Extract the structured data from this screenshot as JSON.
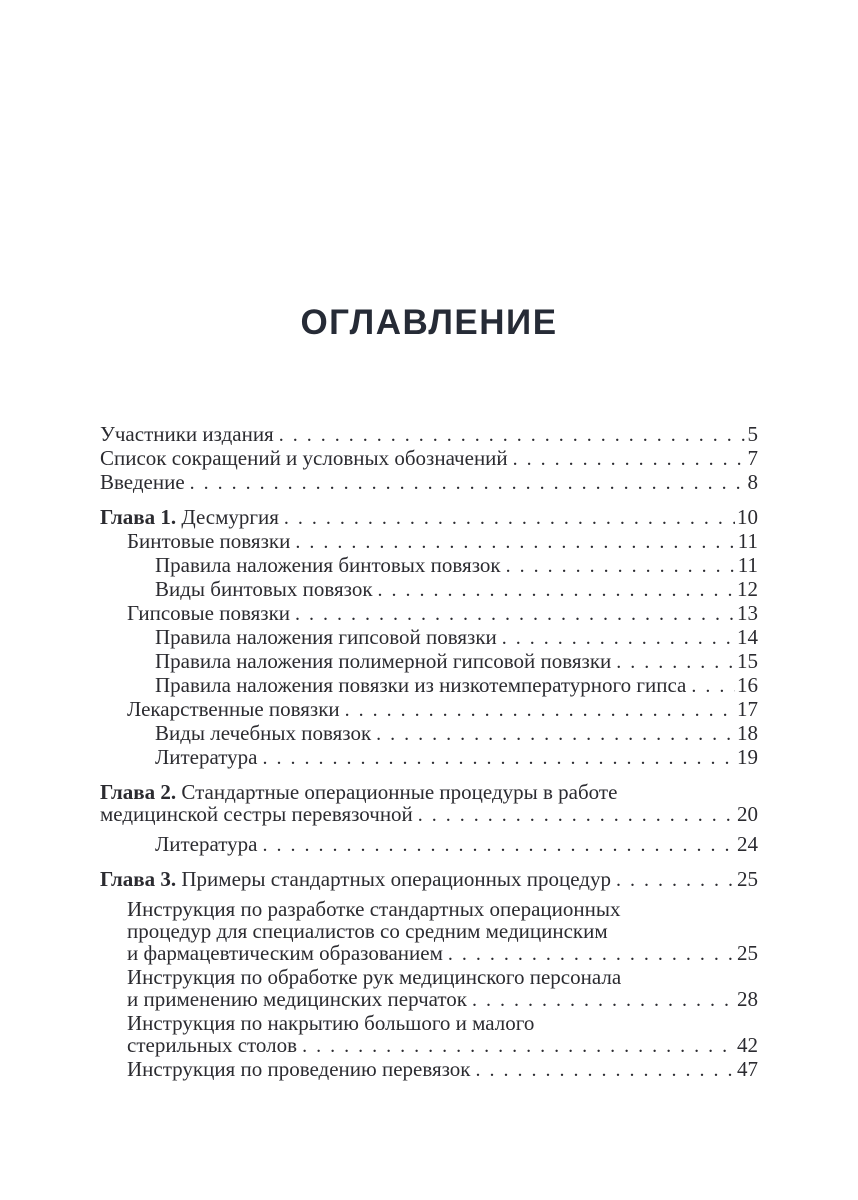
{
  "colors": {
    "background": "#ffffff",
    "title": "#262b36",
    "text": "#2b2b30"
  },
  "toc": {
    "title": "ОГЛАВЛЕНИЕ",
    "entries": [
      {
        "level": 0,
        "prefix": "",
        "lines": [
          "Участники издания"
        ],
        "page": "5"
      },
      {
        "level": 0,
        "prefix": "",
        "lines": [
          "Список сокращений и условных обозначений"
        ],
        "page": "7"
      },
      {
        "level": 0,
        "prefix": "",
        "lines": [
          "Введение"
        ],
        "page": "8"
      },
      {
        "level": 0,
        "prefix": "Глава 1.",
        "lines": [
          "Десмургия"
        ],
        "page": "10",
        "gap": "lg"
      },
      {
        "level": 1,
        "prefix": "",
        "lines": [
          "Бинтовые повязки"
        ],
        "page": "11"
      },
      {
        "level": 2,
        "prefix": "",
        "lines": [
          "Правила наложения бинтовых повязок"
        ],
        "page": "11"
      },
      {
        "level": 2,
        "prefix": "",
        "lines": [
          "Виды бинтовых повязок"
        ],
        "page": "12"
      },
      {
        "level": 1,
        "prefix": "",
        "lines": [
          "Гипсовые повязки"
        ],
        "page": "13"
      },
      {
        "level": 2,
        "prefix": "",
        "lines": [
          "Правила наложения гипсовой повязки"
        ],
        "page": "14"
      },
      {
        "level": 2,
        "prefix": "",
        "lines": [
          "Правила наложения полимерной гипсовой повязки"
        ],
        "page": "15"
      },
      {
        "level": 2,
        "prefix": "",
        "lines": [
          "Правила наложения повязки из низкотемпературного гипса"
        ],
        "page": "16"
      },
      {
        "level": 1,
        "prefix": "",
        "lines": [
          "Лекарственные повязки"
        ],
        "page": "17"
      },
      {
        "level": 2,
        "prefix": "",
        "lines": [
          "Виды лечебных повязок"
        ],
        "page": "18"
      },
      {
        "level": 2,
        "prefix": "",
        "lines": [
          "Литература"
        ],
        "page": "19"
      },
      {
        "level": 0,
        "prefix": "Глава 2.",
        "lines": [
          "Стандартные операционные процедуры в работе",
          "медицинской сестры перевязочной"
        ],
        "page": "20",
        "gap": "lg"
      },
      {
        "level": 2,
        "prefix": "",
        "lines": [
          "Литература"
        ],
        "page": "24",
        "gap": "sm"
      },
      {
        "level": 0,
        "prefix": "Глава 3.",
        "lines": [
          "Примеры стандартных операционных процедур"
        ],
        "page": "25",
        "gap": "lg"
      },
      {
        "level": 1,
        "prefix": "",
        "lines": [
          "Инструкция по разработке стандартных операционных",
          "процедур для специалистов со средним медицинским",
          "и фармацевтическим образованием"
        ],
        "page": "25",
        "gap": "sm"
      },
      {
        "level": 1,
        "prefix": "",
        "lines": [
          "Инструкция по обработке рук медицинского персонала",
          "и применению медицинских перчаток"
        ],
        "page": "28"
      },
      {
        "level": 1,
        "prefix": "",
        "lines": [
          "Инструкция по накрытию большого и малого",
          "стерильных столов"
        ],
        "page": "42"
      },
      {
        "level": 1,
        "prefix": "",
        "lines": [
          "Инструкция по проведению перевязок"
        ],
        "page": "47"
      }
    ]
  }
}
